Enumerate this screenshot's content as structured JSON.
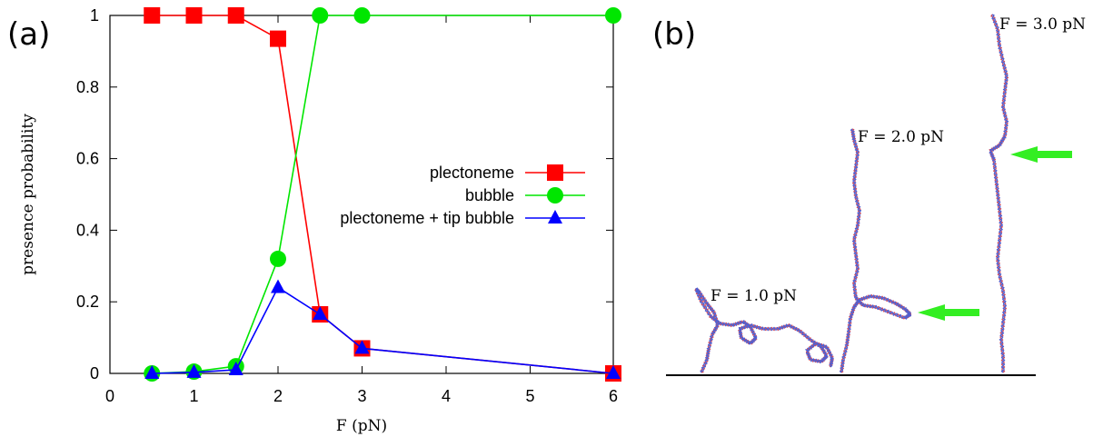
{
  "panel_a": {
    "label": "(a)",
    "chart_data": {
      "type": "line",
      "xlabel": "F (pN)",
      "ylabel": "presence probability",
      "categories": [
        "0",
        "1",
        "2",
        "3",
        "4",
        "5",
        "6"
      ],
      "yticks": [
        "0",
        "0.2",
        "0.4",
        "0.6",
        "0.8",
        "1"
      ],
      "ylim": [
        0,
        1
      ],
      "x_note": "axis is non-linear: ticks 0-5 equally spaced, then 6 placed directly after 3 values",
      "legend_position": "center-right",
      "grid": false,
      "series": [
        {
          "name": "plectoneme",
          "color": "#ff0000",
          "marker": "square",
          "x": [
            0.5,
            1,
            1.5,
            2,
            2.5,
            3,
            6
          ],
          "y": [
            1.0,
            1.0,
            1.0,
            0.935,
            0.165,
            0.07,
            0.0
          ]
        },
        {
          "name": "bubble",
          "color": "#00e600",
          "marker": "circle",
          "x": [
            0.5,
            1,
            1.5,
            2,
            2.5,
            3,
            6
          ],
          "y": [
            0.0,
            0.005,
            0.02,
            0.32,
            1.0,
            1.0,
            1.0
          ]
        },
        {
          "name": "plectoneme + tip bubble",
          "color": "#0000ff",
          "marker": "triangle",
          "x": [
            0.5,
            1,
            1.5,
            2,
            2.5,
            3,
            6
          ],
          "y": [
            0.0,
            0.003,
            0.01,
            0.24,
            0.165,
            0.07,
            0.0
          ]
        }
      ]
    }
  },
  "panel_b": {
    "label": "(b)",
    "strands": [
      {
        "force_label": "F = 1.0 pN"
      },
      {
        "force_label": "F = 2.0 pN"
      },
      {
        "force_label": "F = 3.0 pN"
      }
    ],
    "arrow_color": "#33ee22",
    "strand_colors": [
      "#d05060",
      "#5060d0"
    ]
  }
}
